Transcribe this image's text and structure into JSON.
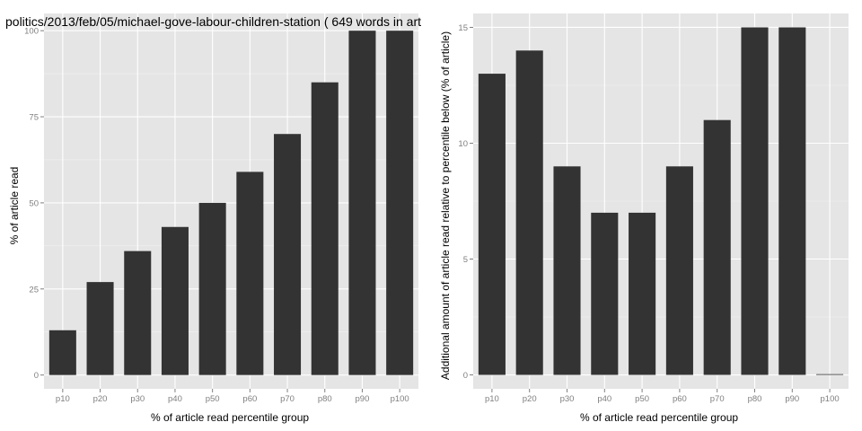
{
  "chart_data": [
    {
      "type": "bar",
      "title": "politics/2013/feb/05/michael-gove-labour-children-station ( 649 words in art",
      "xlabel": "% of article read percentile group",
      "ylabel": "% of article read",
      "categories": [
        "p10",
        "p20",
        "p30",
        "p40",
        "p50",
        "p60",
        "p70",
        "p80",
        "p90",
        "p100"
      ],
      "values": [
        13,
        27,
        36,
        43,
        50,
        59,
        70,
        85,
        100,
        100
      ],
      "ylim": [
        -4,
        105
      ],
      "yticks": [
        0,
        25,
        50,
        75,
        100
      ],
      "ytick_labels": [
        "0",
        "25",
        "50",
        "75",
        "100"
      ],
      "bar_color": "#333333",
      "panel_color": "#e5e5e5",
      "grid": true
    },
    {
      "type": "bar",
      "title": "",
      "xlabel": "% of article read percentile group",
      "ylabel": "Additional amount of article read relative to percentile below (% of article)",
      "categories": [
        "p10",
        "p20",
        "p30",
        "p40",
        "p50",
        "p60",
        "p70",
        "p80",
        "p90",
        "p100"
      ],
      "values": [
        13,
        14,
        9,
        7,
        7,
        9,
        11,
        15,
        15,
        0
      ],
      "ylim": [
        -0.6,
        15.6
      ],
      "yticks": [
        0,
        5,
        10,
        15
      ],
      "ytick_labels": [
        "0",
        "5",
        "10",
        "15"
      ],
      "bar_color": "#333333",
      "panel_color": "#e5e5e5",
      "grid": true
    }
  ]
}
